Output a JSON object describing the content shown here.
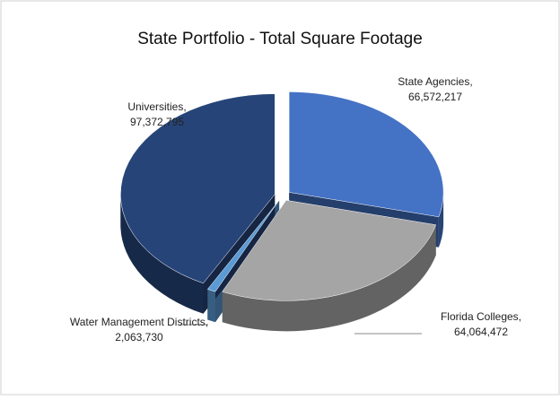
{
  "chart_data": {
    "type": "pie3d",
    "title": "State Portfolio - Total Square Footage",
    "categories": [
      "State Agencies,",
      "Florida Colleges,",
      "Water Management Districts,",
      "Universities,"
    ],
    "values": [
      66572217,
      64064472,
      2063730,
      97372795
    ],
    "value_labels": [
      "66,572,217",
      "64,064,472",
      "2,063,730",
      "97,372,795"
    ],
    "colors": [
      "#4472c4",
      "#a5a5a5",
      "#5b9bd5",
      "#264478"
    ]
  }
}
